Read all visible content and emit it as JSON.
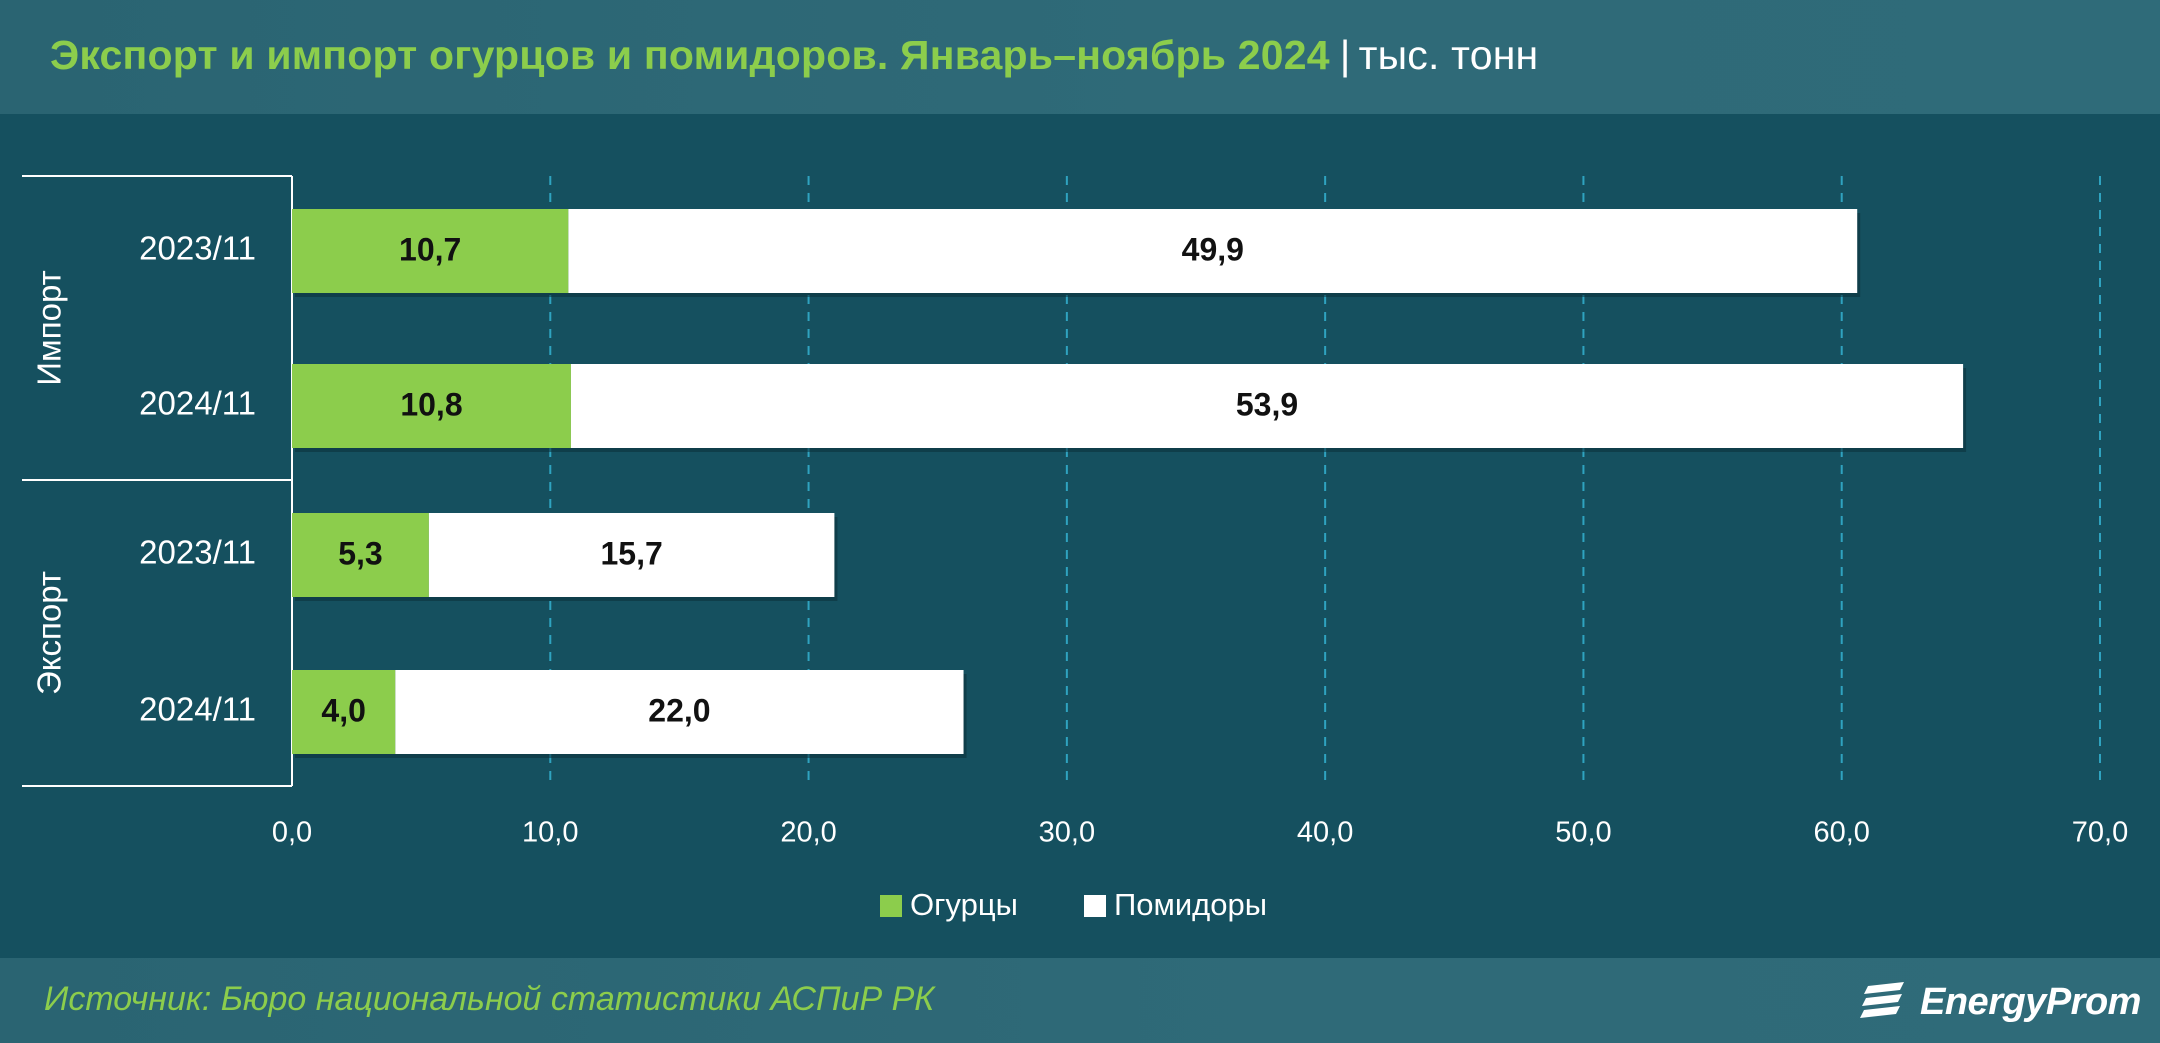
{
  "title": {
    "main": "Экспорт и импорт огурцов и помидоров. Январь–ноябрь 2024",
    "separator": "|",
    "unit": "тыс. тонн"
  },
  "source": "Источник: Бюро национальной статистики АСПиР РК",
  "logo": {
    "text": "EnergyProm",
    "icon": "energyprom-logo-icon"
  },
  "colors": {
    "background": "#15505f",
    "header": "#2c6674",
    "cucumbers": "#8ccd4c",
    "tomatoes": "#ffffff",
    "grid": "#2fa3c0",
    "text": "#ffffff",
    "accent": "#8ccd4c"
  },
  "chart_data": {
    "type": "bar",
    "orientation": "horizontal",
    "stacked": true,
    "groups": [
      {
        "label": "Импорт",
        "categories": [
          "2023/11",
          "2024/11"
        ]
      },
      {
        "label": "Экспорт",
        "categories": [
          "2023/11",
          "2024/11"
        ]
      }
    ],
    "categories": [
      "2023/11",
      "2024/11",
      "2023/11",
      "2024/11"
    ],
    "series": [
      {
        "name": "Огурцы",
        "values": [
          10.7,
          10.8,
          5.3,
          4.0
        ],
        "labels": [
          "10,7",
          "10,8",
          "5,3",
          "4,0"
        ]
      },
      {
        "name": "Помидоры",
        "values": [
          49.9,
          53.9,
          15.7,
          22.0
        ],
        "labels": [
          "49,9",
          "53,9",
          "15,7",
          "22,0"
        ]
      }
    ],
    "xlim": [
      0,
      70
    ],
    "xticks": [
      0,
      10,
      20,
      30,
      40,
      50,
      60,
      70
    ],
    "xtick_labels": [
      "0,0",
      "10,0",
      "20,0",
      "30,0",
      "40,0",
      "50,0",
      "60,0",
      "70,0"
    ],
    "grid": "vertical dashed",
    "legend_position": "bottom-center"
  }
}
